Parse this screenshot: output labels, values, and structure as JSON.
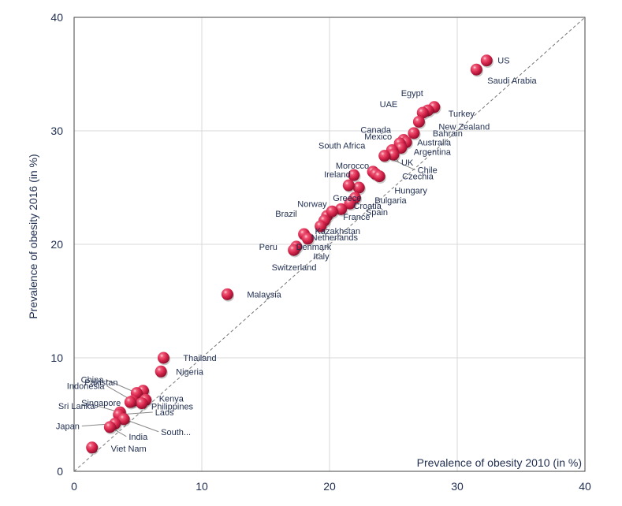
{
  "chart_data": {
    "type": "scatter",
    "title": "",
    "xlabel": "Prevalence of obesity 2010 (in %)",
    "ylabel": "Prevalence of obesity  2016 (in %)",
    "xlim": [
      0,
      40
    ],
    "ylim": [
      0,
      40
    ],
    "xticks": [
      "0",
      "10",
      "20",
      "30",
      "40"
    ],
    "yticks": [
      "0",
      "10",
      "20",
      "30",
      "40"
    ],
    "grid": true,
    "reference_line": "y = x (dashed)",
    "colors": {
      "marker": "#d6234a",
      "marker_highlight": "#f7a9b8",
      "grid": "#d9d9d9",
      "text": "#1f2d4f"
    },
    "points": [
      {
        "label": "US",
        "x": 32.3,
        "y": 36.2
      },
      {
        "label": "Saudi Arabia",
        "x": 31.5,
        "y": 35.4
      },
      {
        "label": "Egypt",
        "x": 28.2,
        "y": 32.1
      },
      {
        "label": "Turkey",
        "x": 27.7,
        "y": 31.8
      },
      {
        "label": "UAE",
        "x": 27.3,
        "y": 31.6
      },
      {
        "label": "New Zealand",
        "x": 27.0,
        "y": 30.8
      },
      {
        "label": "Bahrain",
        "x": 26.6,
        "y": 29.8
      },
      {
        "label": "Canada",
        "x": 25.8,
        "y": 29.2
      },
      {
        "label": "Australia",
        "x": 26.0,
        "y": 29.0
      },
      {
        "label": "Mexico",
        "x": 25.5,
        "y": 28.9
      },
      {
        "label": "Argentina",
        "x": 25.6,
        "y": 28.5
      },
      {
        "label": "South Africa",
        "x": 24.9,
        "y": 28.3
      },
      {
        "label": "UK",
        "x": 25.0,
        "y": 27.9
      },
      {
        "label": "Chile",
        "x": 24.3,
        "y": 27.8
      },
      {
        "label": "Morocco",
        "x": 23.4,
        "y": 26.4
      },
      {
        "label": "Hungary",
        "x": 23.6,
        "y": 26.2
      },
      {
        "label": "Czechia",
        "x": 23.9,
        "y": 26.0
      },
      {
        "label": "Ireland",
        "x": 21.9,
        "y": 26.1
      },
      {
        "label": "Bulgaria",
        "x": 22.3,
        "y": 25.0
      },
      {
        "label": "Greece",
        "x": 21.5,
        "y": 25.2
      },
      {
        "label": "Croatia",
        "x": 22.0,
        "y": 24.1
      },
      {
        "label": "Spain",
        "x": 21.6,
        "y": 23.6
      },
      {
        "label": "Norway",
        "x": 20.9,
        "y": 23.1
      },
      {
        "label": "Brazil",
        "x": 19.8,
        "y": 22.5
      },
      {
        "label": "France",
        "x": 20.2,
        "y": 22.9
      },
      {
        "label": "Kazakhstan",
        "x": 19.6,
        "y": 22.1
      },
      {
        "label": "Netherlands",
        "x": 19.3,
        "y": 21.6
      },
      {
        "label": "Denmark",
        "x": 18.0,
        "y": 20.9
      },
      {
        "label": "Peru",
        "x": 17.4,
        "y": 19.8
      },
      {
        "label": "Switzerland",
        "x": 17.2,
        "y": 19.5
      },
      {
        "label": "Italy",
        "x": 18.3,
        "y": 20.5
      },
      {
        "label": "Malaysia",
        "x": 12.0,
        "y": 15.6
      },
      {
        "label": "Thailand",
        "x": 7.0,
        "y": 10.0
      },
      {
        "label": "Nigeria",
        "x": 6.8,
        "y": 8.8
      },
      {
        "label": "Pakistan",
        "x": 5.4,
        "y": 7.1
      },
      {
        "label": "China",
        "x": 4.9,
        "y": 6.9
      },
      {
        "label": "Kenya",
        "x": 5.6,
        "y": 6.3
      },
      {
        "label": "Indonesia",
        "x": 4.6,
        "y": 6.2
      },
      {
        "label": "Philippines",
        "x": 5.3,
        "y": 6.0
      },
      {
        "label": "Singapore",
        "x": 4.4,
        "y": 6.1
      },
      {
        "label": "Sri Lanka",
        "x": 3.6,
        "y": 5.2
      },
      {
        "label": "Laos",
        "x": 3.5,
        "y": 5.0
      },
      {
        "label": "South...",
        "x": 3.9,
        "y": 4.6
      },
      {
        "label": "Japan",
        "x": 3.2,
        "y": 4.2
      },
      {
        "label": "India",
        "x": 2.8,
        "y": 3.9
      },
      {
        "label": "Viet Nam",
        "x": 1.4,
        "y": 2.1
      }
    ]
  }
}
